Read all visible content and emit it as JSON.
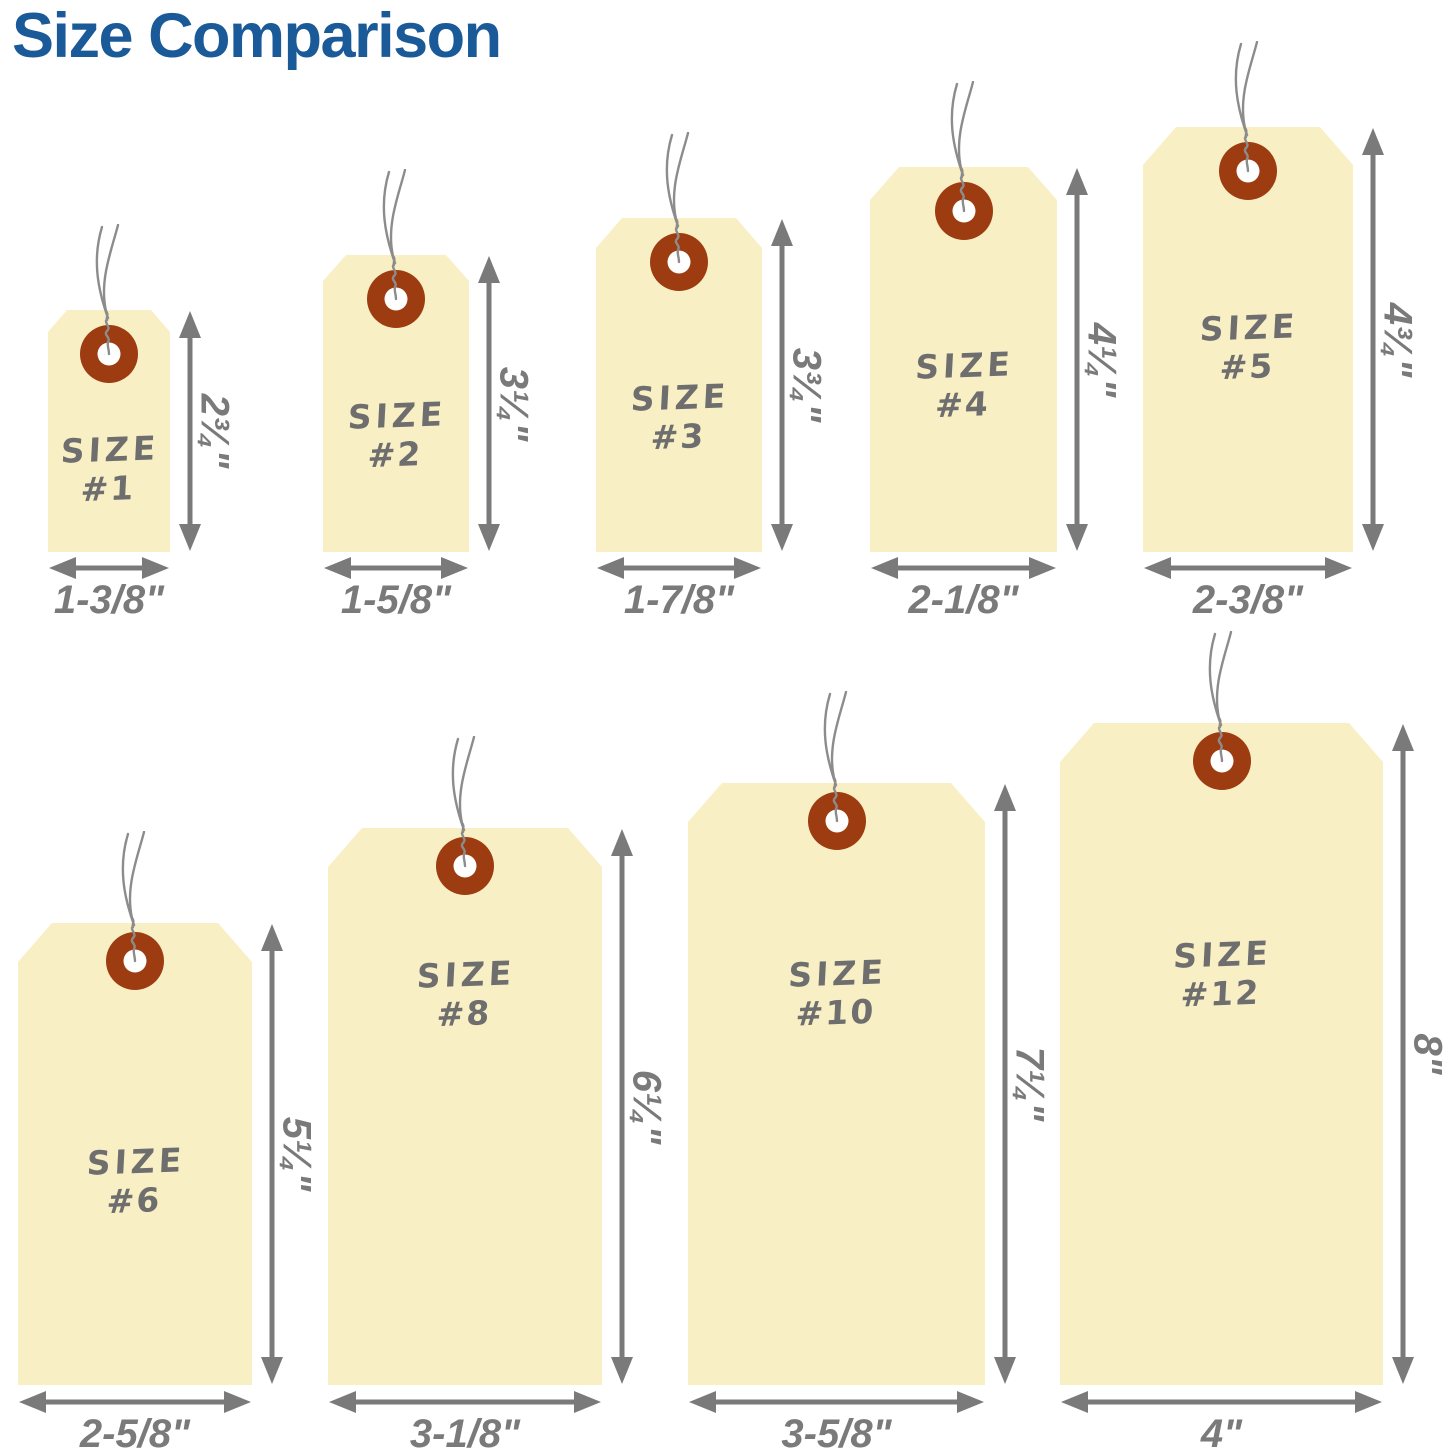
{
  "title": "Size Comparison",
  "colors": {
    "title_blue": "#1A5A98",
    "tag_fill": "#F8EFC5",
    "eyelet_rust": "#9D3C10",
    "eyelet_hole": "#FFFFFF",
    "dimension_gray": "#7A7A7A",
    "tag_text_gray": "#6E6E6E",
    "wire_gray": "#8C8C8C"
  },
  "rows": [
    {
      "tags": [
        {
          "size_word": "SIZE",
          "number": "#1",
          "height_label": "2¾\"",
          "width_label": "1-3/8\"",
          "height_in": 2.75,
          "width_in": 1.375
        },
        {
          "size_word": "SIZE",
          "number": "#2",
          "height_label": "3¼\"",
          "width_label": "1-5/8\"",
          "height_in": 3.25,
          "width_in": 1.625
        },
        {
          "size_word": "SIZE",
          "number": "#3",
          "height_label": "3¾\"",
          "width_label": "1-7/8\"",
          "height_in": 3.75,
          "width_in": 1.875
        },
        {
          "size_word": "SIZE",
          "number": "#4",
          "height_label": "4¼\"",
          "width_label": "2-1/8\"",
          "height_in": 4.25,
          "width_in": 2.125
        },
        {
          "size_word": "SIZE",
          "number": "#5",
          "height_label": "4¾\"",
          "width_label": "2-3/8\"",
          "height_in": 4.75,
          "width_in": 2.375
        }
      ]
    },
    {
      "tags": [
        {
          "size_word": "SIZE",
          "number": "#6",
          "height_label": "5¼\"",
          "width_label": "2-5/8\"",
          "height_in": 5.25,
          "width_in": 2.625
        },
        {
          "size_word": "SIZE",
          "number": "#8",
          "height_label": "6¼\"",
          "width_label": "3-1/8\"",
          "height_in": 6.25,
          "width_in": 3.125
        },
        {
          "size_word": "SIZE",
          "number": "#10",
          "height_label": "7¼\"",
          "width_label": "3-5/8\"",
          "height_in": 7.25,
          "width_in": 3.625
        },
        {
          "size_word": "SIZE",
          "number": "#12",
          "height_label": "8\"",
          "width_label": "4\"",
          "height_in": 8,
          "width_in": 4
        }
      ]
    }
  ]
}
